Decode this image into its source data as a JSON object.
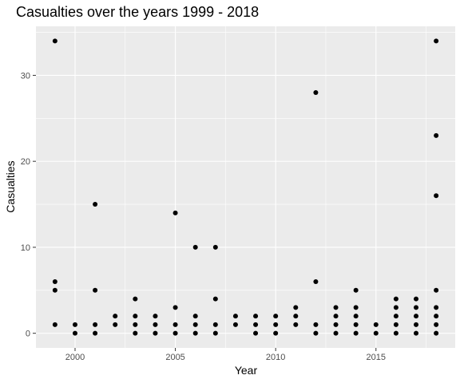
{
  "chart_data": {
    "type": "scatter",
    "title": "Casualties over the years 1999 - 2018",
    "xlabel": "Year",
    "ylabel": "Casualties",
    "xlim": [
      1998.05,
      2018.95
    ],
    "ylim": [
      -1.7,
      35.7
    ],
    "x_ticks": [
      2000,
      2005,
      2010,
      2015
    ],
    "y_ticks": [
      0,
      10,
      20,
      30
    ],
    "x_minor": [
      2002.5,
      2007.5,
      2012.5,
      2017.5
    ],
    "y_minor": [
      5,
      15,
      25,
      35
    ],
    "grid": true,
    "panel_background": "#ebebeb",
    "grid_color": "#ffffff",
    "point_color": "#000000",
    "points": [
      [
        1999,
        34
      ],
      [
        1999,
        6
      ],
      [
        1999,
        5
      ],
      [
        1999,
        1
      ],
      [
        2000,
        1
      ],
      [
        2000,
        0
      ],
      [
        2001,
        15
      ],
      [
        2001,
        5
      ],
      [
        2001,
        1
      ],
      [
        2001,
        0
      ],
      [
        2002,
        2
      ],
      [
        2002,
        1
      ],
      [
        2003,
        4
      ],
      [
        2003,
        2
      ],
      [
        2003,
        1
      ],
      [
        2003,
        0
      ],
      [
        2004,
        2
      ],
      [
        2004,
        1
      ],
      [
        2004,
        0
      ],
      [
        2005,
        14
      ],
      [
        2005,
        3
      ],
      [
        2005,
        1
      ],
      [
        2005,
        0
      ],
      [
        2006,
        10
      ],
      [
        2006,
        2
      ],
      [
        2006,
        1
      ],
      [
        2006,
        0
      ],
      [
        2007,
        10
      ],
      [
        2007,
        4
      ],
      [
        2007,
        1
      ],
      [
        2007,
        0
      ],
      [
        2008,
        2
      ],
      [
        2008,
        1
      ],
      [
        2009,
        2
      ],
      [
        2009,
        1
      ],
      [
        2009,
        0
      ],
      [
        2010,
        2
      ],
      [
        2010,
        1
      ],
      [
        2010,
        0
      ],
      [
        2011,
        3
      ],
      [
        2011,
        2
      ],
      [
        2011,
        1
      ],
      [
        2012,
        28
      ],
      [
        2012,
        6
      ],
      [
        2012,
        1
      ],
      [
        2012,
        0
      ],
      [
        2013,
        3
      ],
      [
        2013,
        2
      ],
      [
        2013,
        1
      ],
      [
        2013,
        0
      ],
      [
        2014,
        5
      ],
      [
        2014,
        3
      ],
      [
        2014,
        2
      ],
      [
        2014,
        1
      ],
      [
        2014,
        0
      ],
      [
        2015,
        1
      ],
      [
        2015,
        0
      ],
      [
        2016,
        4
      ],
      [
        2016,
        3
      ],
      [
        2016,
        2
      ],
      [
        2016,
        1
      ],
      [
        2016,
        0
      ],
      [
        2017,
        4
      ],
      [
        2017,
        3
      ],
      [
        2017,
        2
      ],
      [
        2017,
        1
      ],
      [
        2017,
        0
      ],
      [
        2018,
        34
      ],
      [
        2018,
        23
      ],
      [
        2018,
        16
      ],
      [
        2018,
        5
      ],
      [
        2018,
        3
      ],
      [
        2018,
        2
      ],
      [
        2018,
        1
      ],
      [
        2018,
        0
      ]
    ]
  }
}
